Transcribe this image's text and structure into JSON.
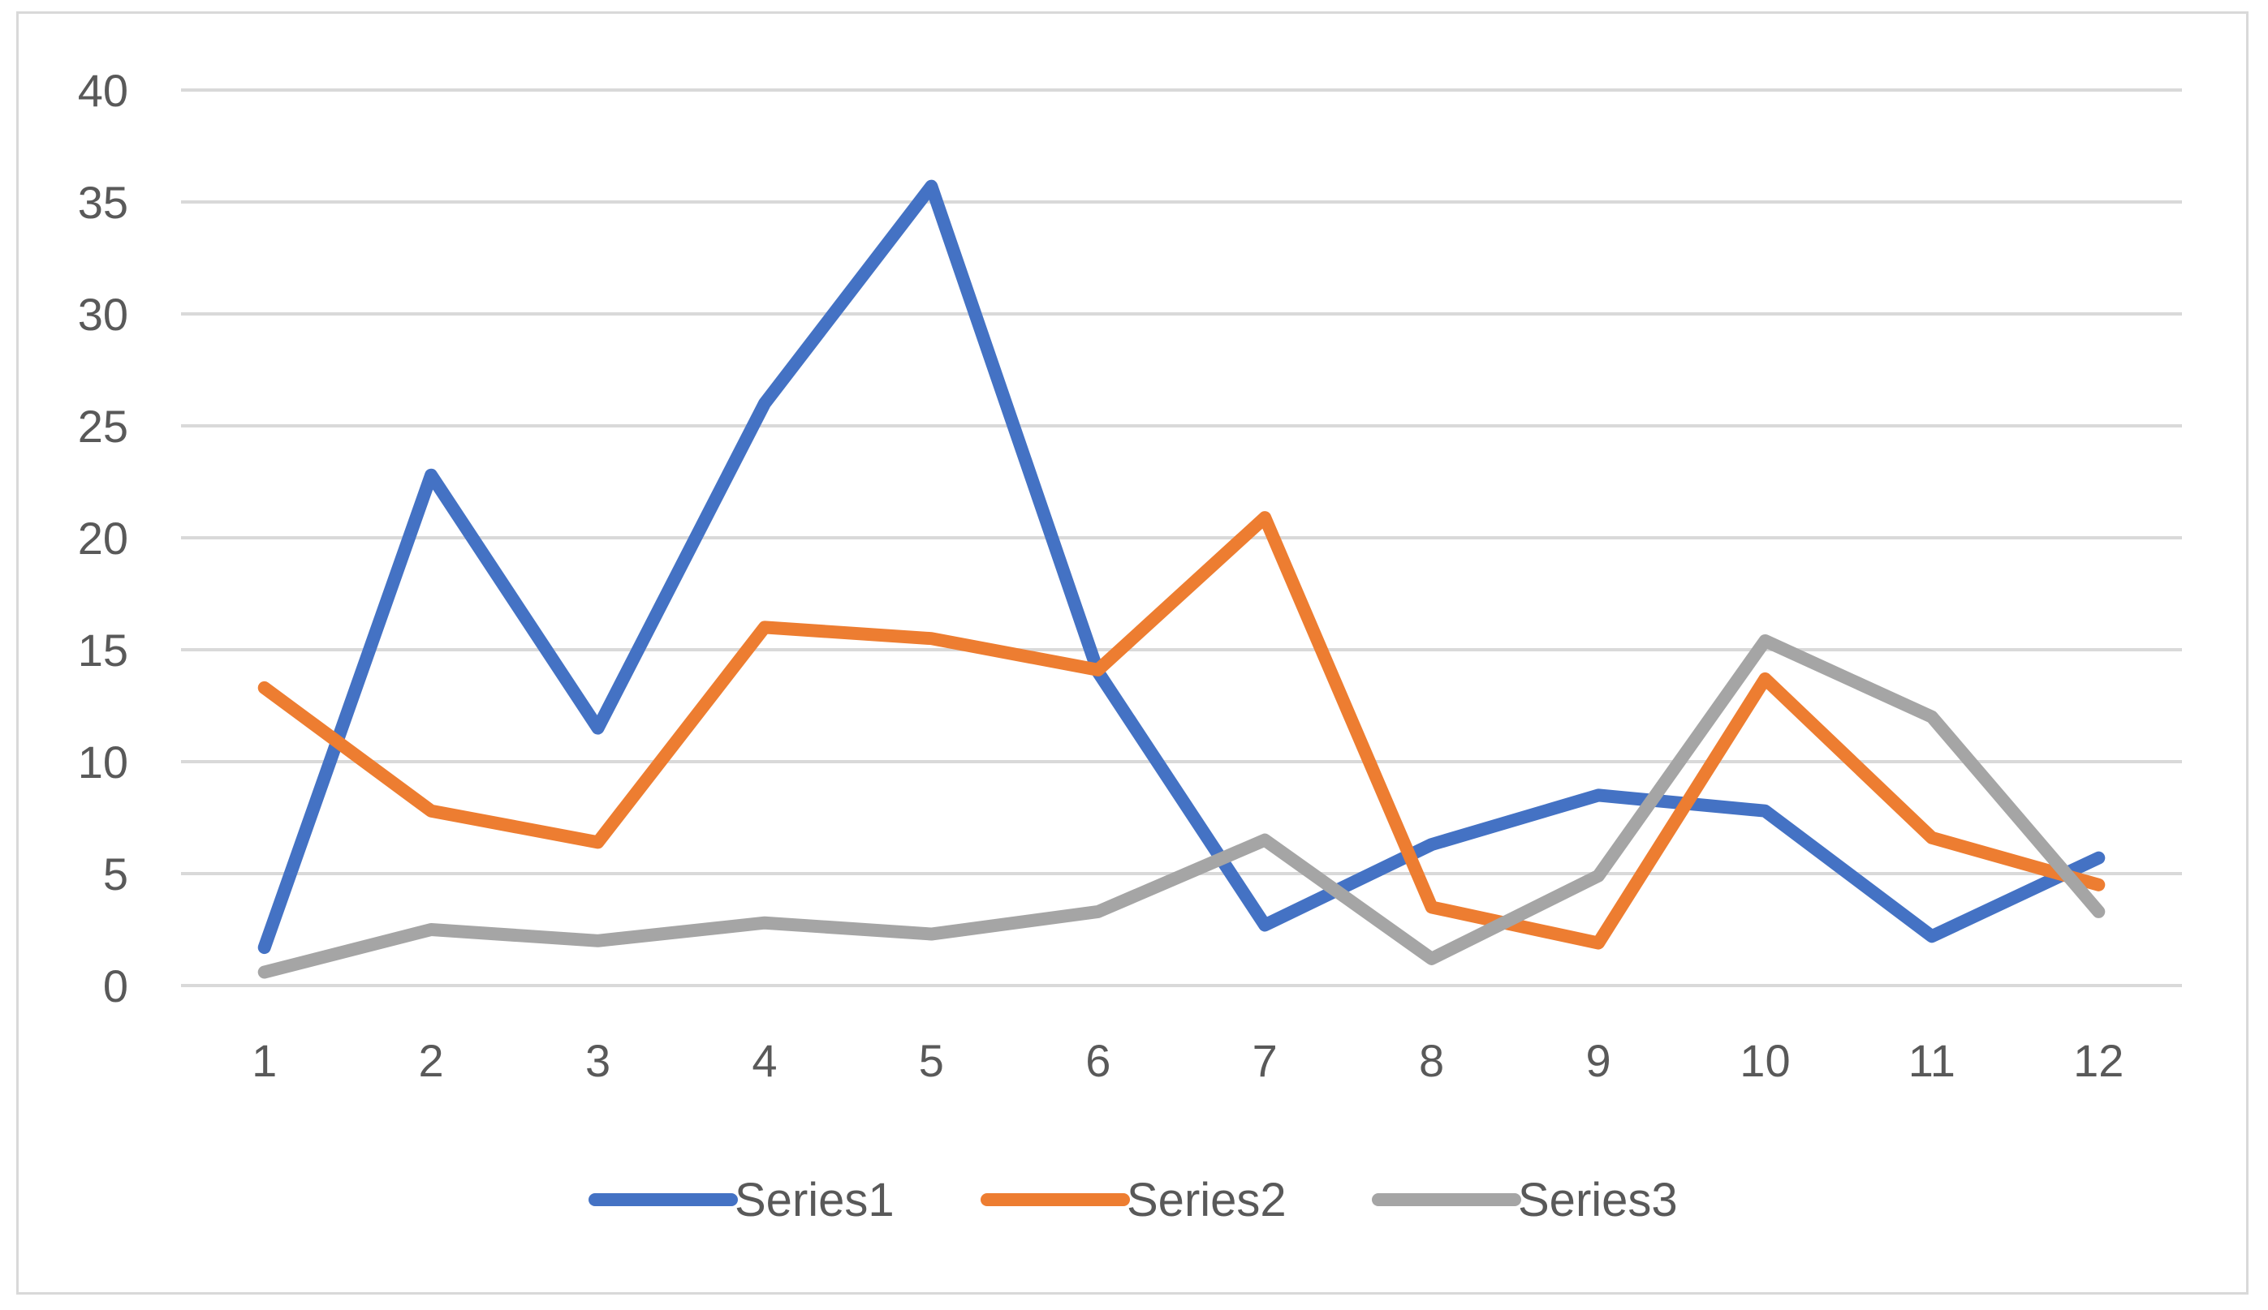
{
  "chart_data": {
    "type": "line",
    "title": "",
    "xlabel": "",
    "ylabel": "",
    "categories": [
      "1",
      "2",
      "3",
      "4",
      "5",
      "6",
      "7",
      "8",
      "9",
      "10",
      "11",
      "12"
    ],
    "y_ticks": [
      "0",
      "5",
      "10",
      "15",
      "20",
      "25",
      "30",
      "35",
      "40"
    ],
    "ylim": [
      0,
      40
    ],
    "grid": true,
    "legend_position": "bottom",
    "series": [
      {
        "name": "Series1",
        "color": "#4472c4",
        "values": [
          1.7,
          22.8,
          11.5,
          26,
          35.7,
          14,
          2.7,
          6.3,
          8.5,
          7.8,
          2.2,
          5.7
        ]
      },
      {
        "name": "Series2",
        "color": "#ed7d31",
        "values": [
          13.3,
          7.8,
          6.4,
          16,
          15.5,
          14.1,
          20.9,
          3.5,
          1.9,
          13.7,
          6.6,
          4.5
        ]
      },
      {
        "name": "Series3",
        "color": "#a5a5a5",
        "values": [
          0.6,
          2.5,
          2.0,
          2.8,
          2.3,
          3.3,
          6.5,
          1.2,
          4.9,
          15.4,
          12.0,
          3.3
        ]
      }
    ]
  }
}
